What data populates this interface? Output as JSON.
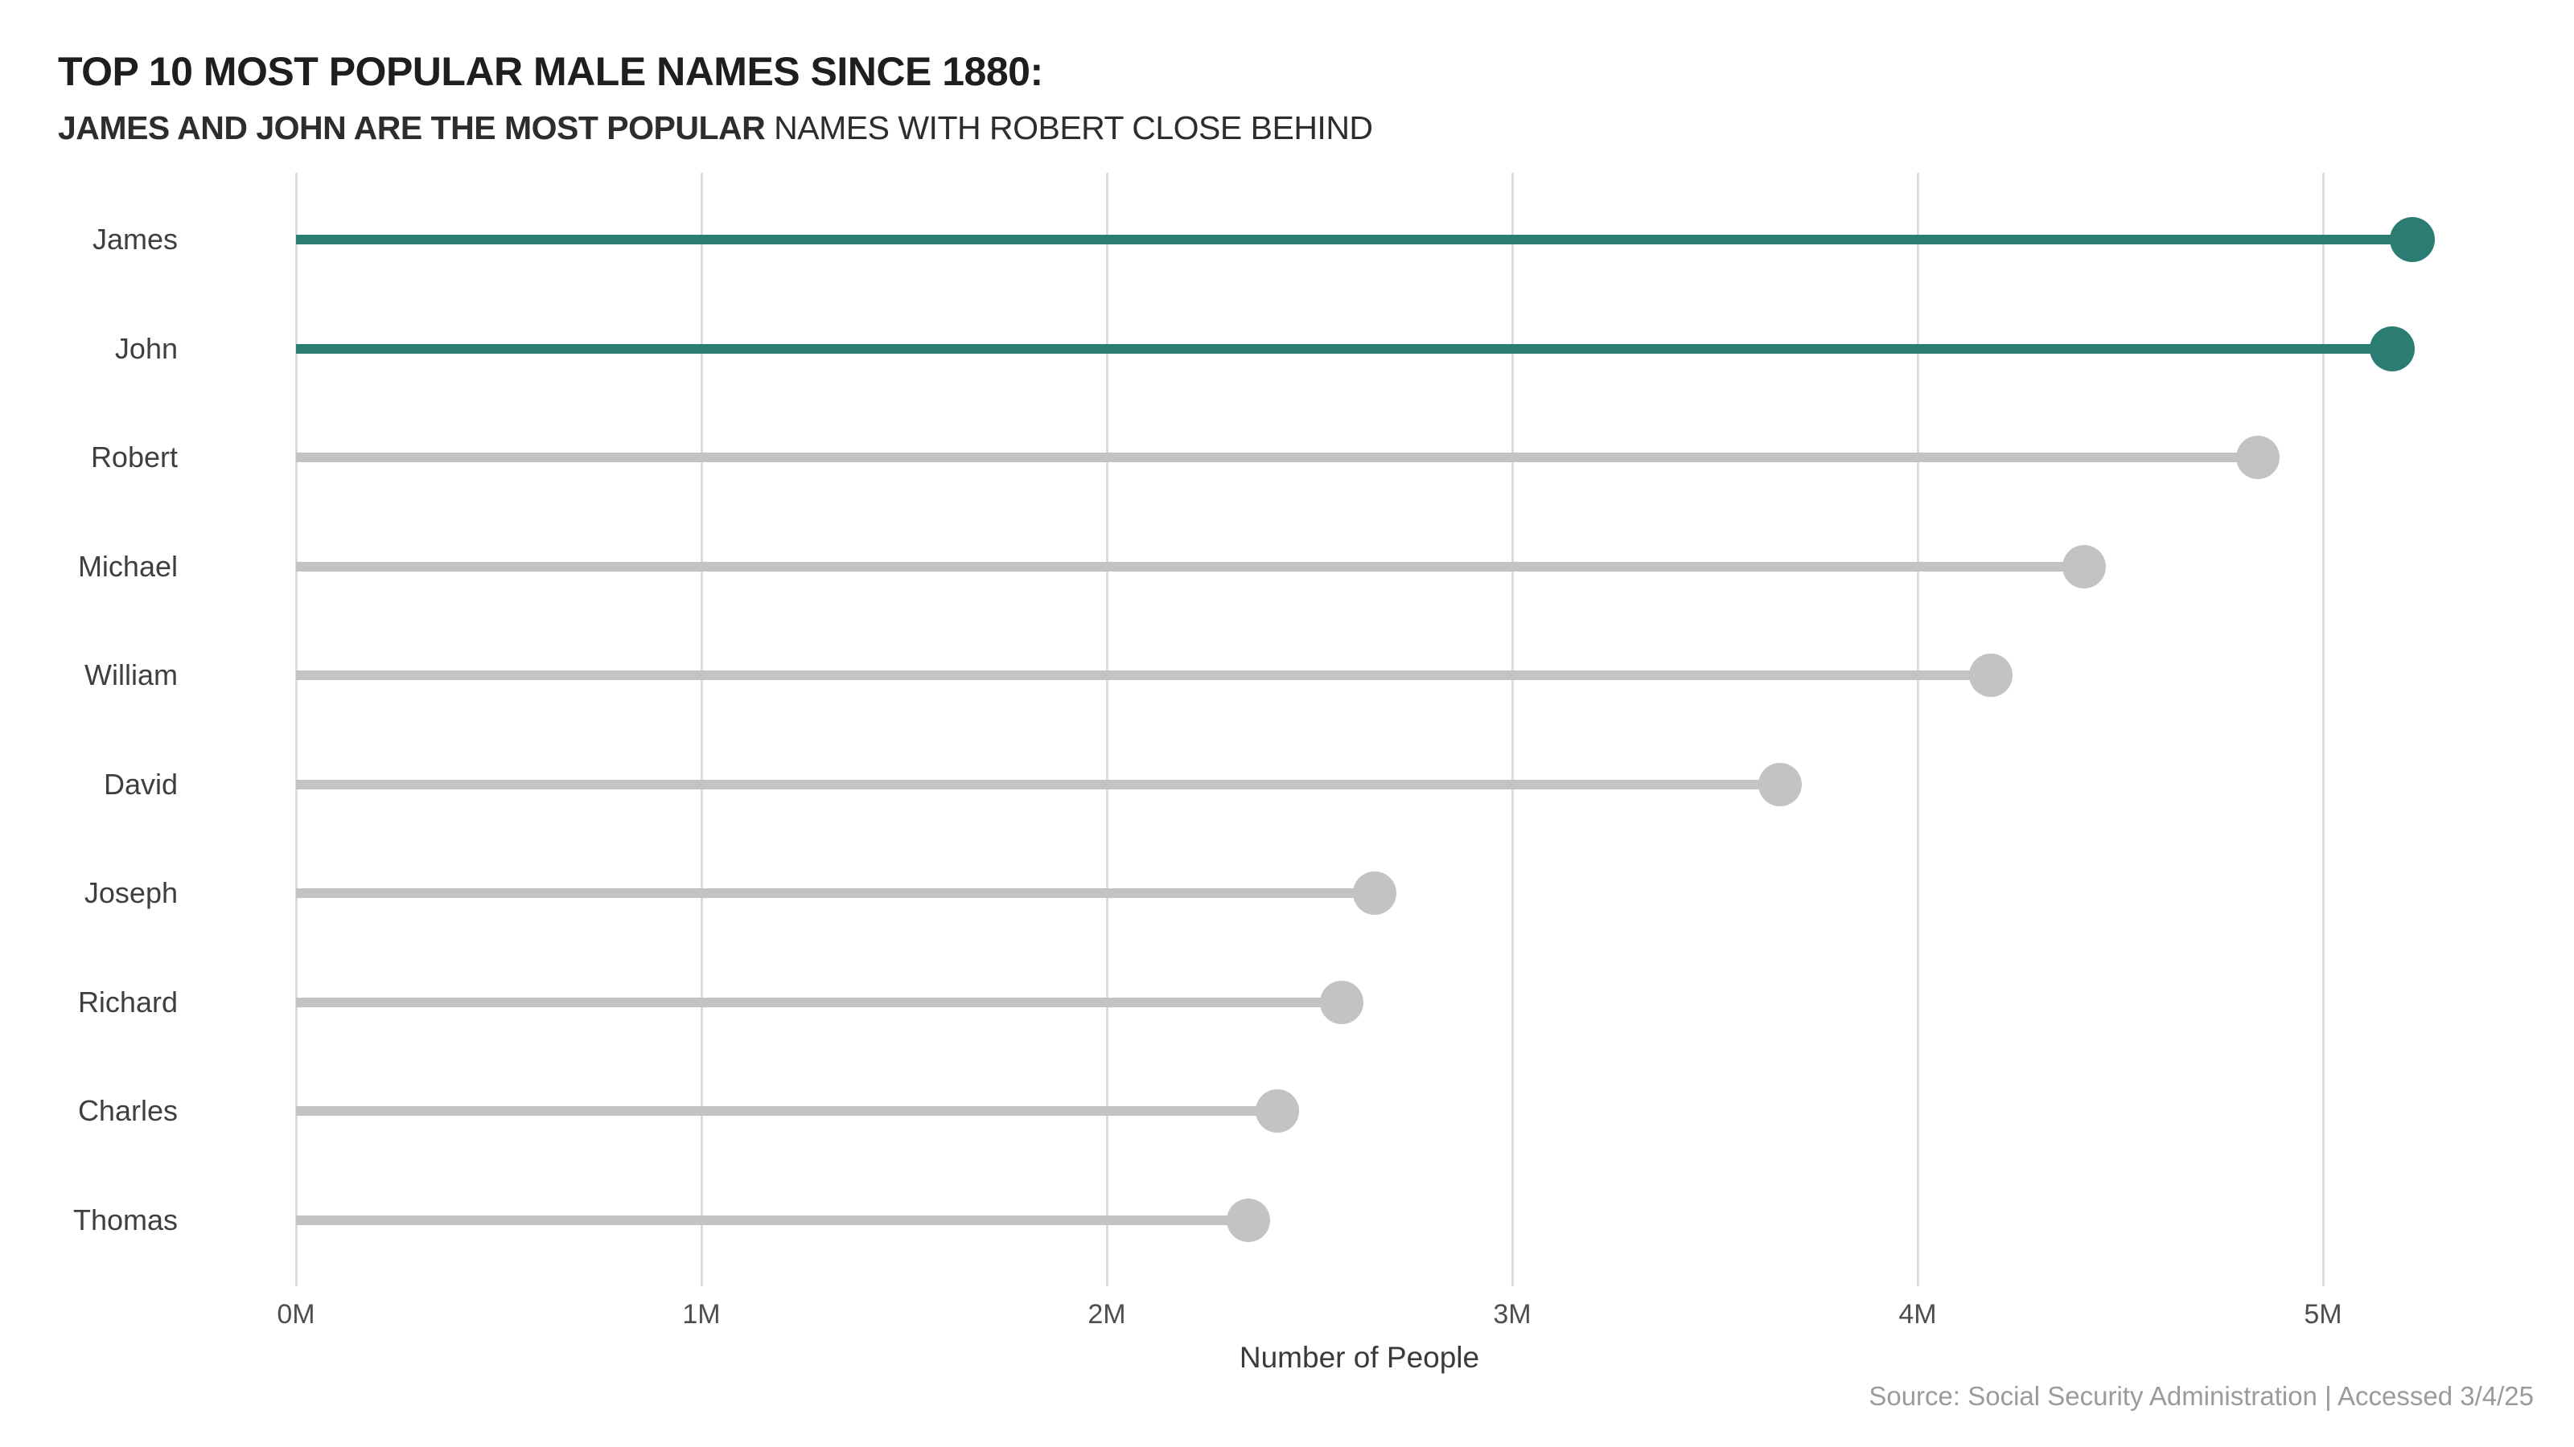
{
  "header": {
    "title": "TOP 10 MOST POPULAR MALE NAMES SINCE 1880:",
    "subtitle_highlight": "JAMES AND JOHN ARE THE MOST POPULAR",
    "subtitle_rest": " NAMES WITH ROBERT CLOSE BEHIND"
  },
  "chart_data": {
    "type": "bar",
    "variant": "horizontal-lollipop",
    "title": "TOP 10 MOST POPULAR MALE NAMES SINCE 1880: JAMES AND JOHN ARE THE MOST POPULAR NAMES WITH ROBERT CLOSE BEHIND",
    "categories": [
      "James",
      "John",
      "Robert",
      "Michael",
      "William",
      "David",
      "Joseph",
      "Richard",
      "Charles",
      "Thomas"
    ],
    "values_millions": [
      5.22,
      5.17,
      4.84,
      4.41,
      4.18,
      3.66,
      2.66,
      2.58,
      2.42,
      2.35
    ],
    "highlighted_categories": [
      "James",
      "John"
    ],
    "xlabel": "Number of People",
    "ylabel": "",
    "x_ticks": [
      "0M",
      "1M",
      "2M",
      "3M",
      "4M",
      "5M"
    ],
    "x_tick_values_millions": [
      0,
      1,
      2,
      3,
      4,
      5
    ],
    "xlim_millions": [
      0,
      5
    ],
    "grid": "vertical-only",
    "legend": "none",
    "highlight_color": "#2b7d73",
    "default_color": "#c3c3c3",
    "gridline_color": "#dcdcdc"
  },
  "footer": {
    "source": "Source: Social Security Administration | Accessed 3/4/25"
  }
}
